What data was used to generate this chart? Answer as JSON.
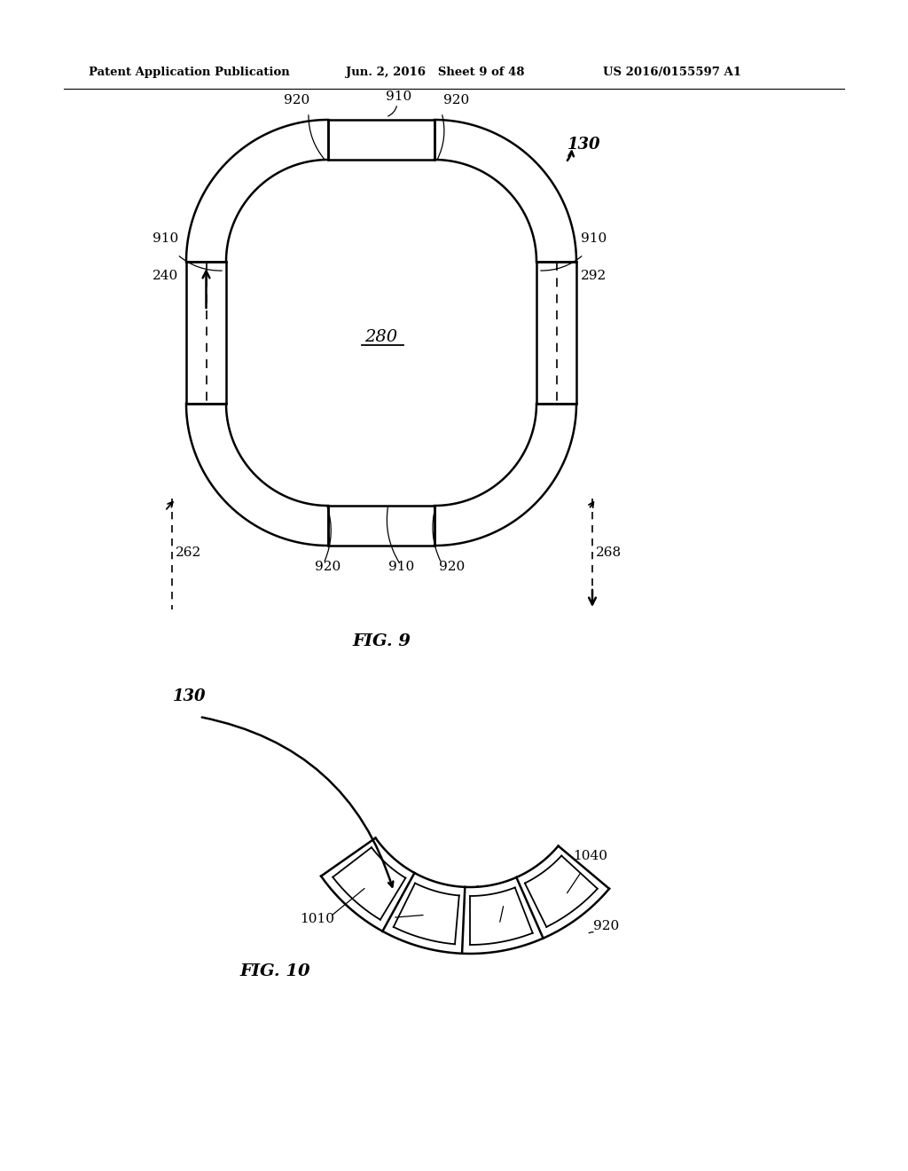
{
  "header_left": "Patent Application Publication",
  "header_mid": "Jun. 2, 2016   Sheet 9 of 48",
  "header_right": "US 2016/0155597 A1",
  "fig9_label": "FIG. 9",
  "fig10_label": "FIG. 10",
  "bg_color": "#ffffff",
  "line_color": "#000000"
}
